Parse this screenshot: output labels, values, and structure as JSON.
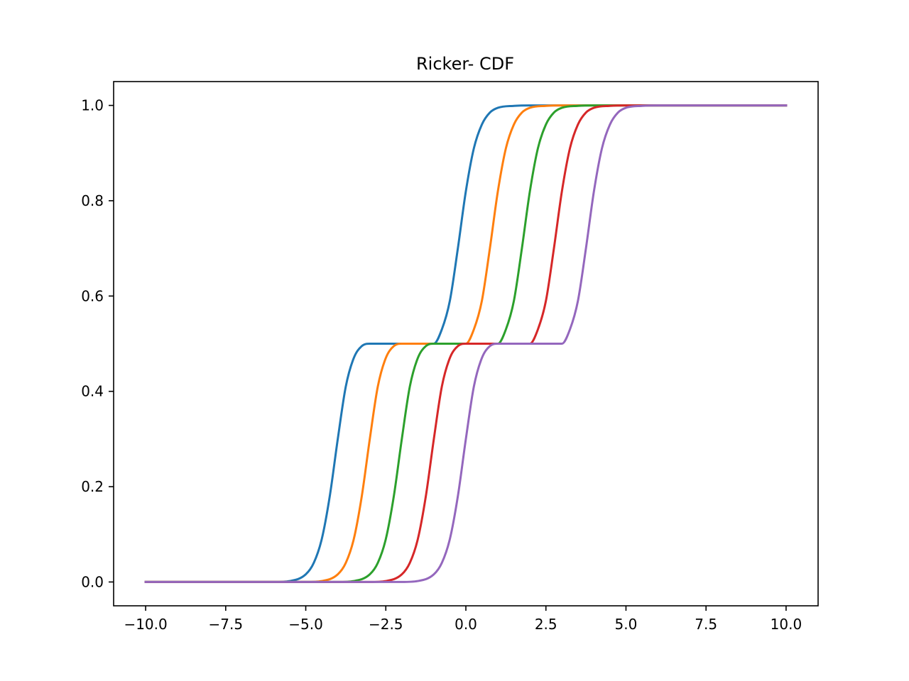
{
  "chart_data": {
    "type": "line",
    "title": "Ricker- CDF",
    "xlabel": "",
    "ylabel": "",
    "xlim": [
      -11.0,
      11.0
    ],
    "ylim": [
      -0.05,
      1.05
    ],
    "xticks": [
      -10.0,
      -7.5,
      -5.0,
      -2.5,
      0.0,
      2.5,
      5.0,
      7.5,
      10.0
    ],
    "xtick_labels": [
      "−10.0",
      "−7.5",
      "−5.0",
      "−2.5",
      "0.0",
      "2.5",
      "5.0",
      "7.5",
      "10.0"
    ],
    "yticks": [
      0.0,
      0.2,
      0.4,
      0.6,
      0.8,
      1.0
    ],
    "ytick_labels": [
      "0.0",
      "0.2",
      "0.4",
      "0.6",
      "0.8",
      "1.0"
    ],
    "grid": false,
    "legend": null,
    "series": [
      {
        "color": "#1f77b4",
        "x": [
          -10,
          -6,
          -5.5,
          -5,
          -4.75,
          -4.5,
          -4.25,
          -4,
          -3.75,
          -3.5,
          -3.25,
          -3,
          -1,
          -0.75,
          -0.5,
          -0.25,
          0,
          0.25,
          0.5,
          0.75,
          1,
          1.5,
          2,
          3,
          10
        ],
        "y": [
          0,
          0,
          0.002,
          0.016,
          0.04,
          0.09,
          0.18,
          0.3,
          0.41,
          0.47,
          0.495,
          0.5,
          0.5,
          0.53,
          0.59,
          0.7,
          0.82,
          0.91,
          0.96,
          0.985,
          0.995,
          0.999,
          1.0,
          1.0,
          1.0
        ]
      },
      {
        "color": "#ff7f0e",
        "x": [
          -10,
          -5,
          -4.5,
          -4,
          -3.75,
          -3.5,
          -3.25,
          -3,
          -2.75,
          -2.5,
          -2.25,
          -2,
          0,
          0.25,
          0.5,
          0.75,
          1,
          1.25,
          1.5,
          1.75,
          2,
          2.5,
          3,
          4,
          10
        ],
        "y": [
          0,
          0,
          0.002,
          0.016,
          0.04,
          0.09,
          0.18,
          0.3,
          0.41,
          0.47,
          0.495,
          0.5,
          0.5,
          0.53,
          0.59,
          0.7,
          0.82,
          0.91,
          0.96,
          0.985,
          0.995,
          0.999,
          1.0,
          1.0,
          1.0
        ]
      },
      {
        "color": "#2ca02c",
        "x": [
          -10,
          -4,
          -3.5,
          -3,
          -2.75,
          -2.5,
          -2.25,
          -2,
          -1.75,
          -1.5,
          -1.25,
          -1,
          1,
          1.25,
          1.5,
          1.75,
          2,
          2.25,
          2.5,
          2.75,
          3,
          3.5,
          4,
          5,
          10
        ],
        "y": [
          0,
          0,
          0.002,
          0.016,
          0.04,
          0.09,
          0.18,
          0.3,
          0.41,
          0.47,
          0.495,
          0.5,
          0.5,
          0.53,
          0.59,
          0.7,
          0.82,
          0.91,
          0.96,
          0.985,
          0.995,
          0.999,
          1.0,
          1.0,
          1.0
        ]
      },
      {
        "color": "#d62728",
        "x": [
          -10,
          -3,
          -2.5,
          -2,
          -1.75,
          -1.5,
          -1.25,
          -1,
          -0.75,
          -0.5,
          -0.25,
          0,
          2,
          2.25,
          2.5,
          2.75,
          3,
          3.25,
          3.5,
          3.75,
          4,
          4.5,
          5,
          6,
          10
        ],
        "y": [
          0,
          0,
          0.002,
          0.016,
          0.04,
          0.09,
          0.18,
          0.3,
          0.41,
          0.47,
          0.495,
          0.5,
          0.5,
          0.53,
          0.59,
          0.7,
          0.82,
          0.91,
          0.96,
          0.985,
          0.995,
          0.999,
          1.0,
          1.0,
          1.0
        ]
      },
      {
        "color": "#9467bd",
        "x": [
          -10,
          -2,
          -1.5,
          -1,
          -0.75,
          -0.5,
          -0.25,
          0,
          0.25,
          0.5,
          0.75,
          1,
          3,
          3.25,
          3.5,
          3.75,
          4,
          4.25,
          4.5,
          4.75,
          5,
          5.5,
          6,
          7,
          10
        ],
        "y": [
          0,
          0,
          0.002,
          0.016,
          0.04,
          0.09,
          0.18,
          0.3,
          0.41,
          0.47,
          0.495,
          0.5,
          0.5,
          0.53,
          0.59,
          0.7,
          0.82,
          0.91,
          0.96,
          0.985,
          0.995,
          0.999,
          1.0,
          1.0,
          1.0
        ]
      }
    ]
  }
}
